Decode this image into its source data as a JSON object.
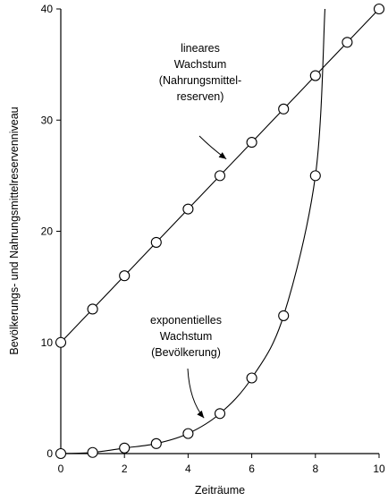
{
  "chart_data": {
    "type": "line",
    "xlabel": "Zeiträume",
    "ylabel": "Bevölkerungs- und Nahrungsmittelreservenniveau",
    "xlim": [
      0,
      10
    ],
    "ylim": [
      0,
      40
    ],
    "xticks": [
      0,
      2,
      4,
      6,
      8,
      10
    ],
    "yticks": [
      0,
      10,
      20,
      30,
      40
    ],
    "xtick_labels": [
      "0",
      "2",
      "4",
      "6",
      "8",
      "10"
    ],
    "ytick_labels": [
      "0",
      "10",
      "20",
      "30",
      "40"
    ],
    "grid": false,
    "series": [
      {
        "key": "linear",
        "x": [
          0,
          1,
          2,
          3,
          4,
          5,
          6,
          7,
          8,
          9,
          10
        ],
        "y": [
          10,
          13,
          16,
          19,
          22,
          25,
          28,
          31,
          34,
          37,
          40
        ]
      },
      {
        "key": "exponential",
        "x": [
          0,
          1,
          2,
          3,
          4,
          5,
          6,
          7,
          8
        ],
        "y": [
          0,
          0.1,
          0.5,
          0.9,
          1.8,
          3.6,
          6.8,
          12.4,
          25
        ],
        "curve_end": [
          8.3,
          40
        ]
      }
    ],
    "annotations": [
      {
        "key": "linear",
        "lines": [
          "lineares",
          "Wachstum",
          "(Nahrungsmittel-",
          "reserven)"
        ],
        "arrow_to": [
          5.2,
          26.5
        ]
      },
      {
        "key": "exponential",
        "lines": [
          "exponentielles",
          "Wachstum",
          "(Bevölkerung)"
        ],
        "arrow_to": [
          4.5,
          3.2
        ]
      }
    ]
  }
}
